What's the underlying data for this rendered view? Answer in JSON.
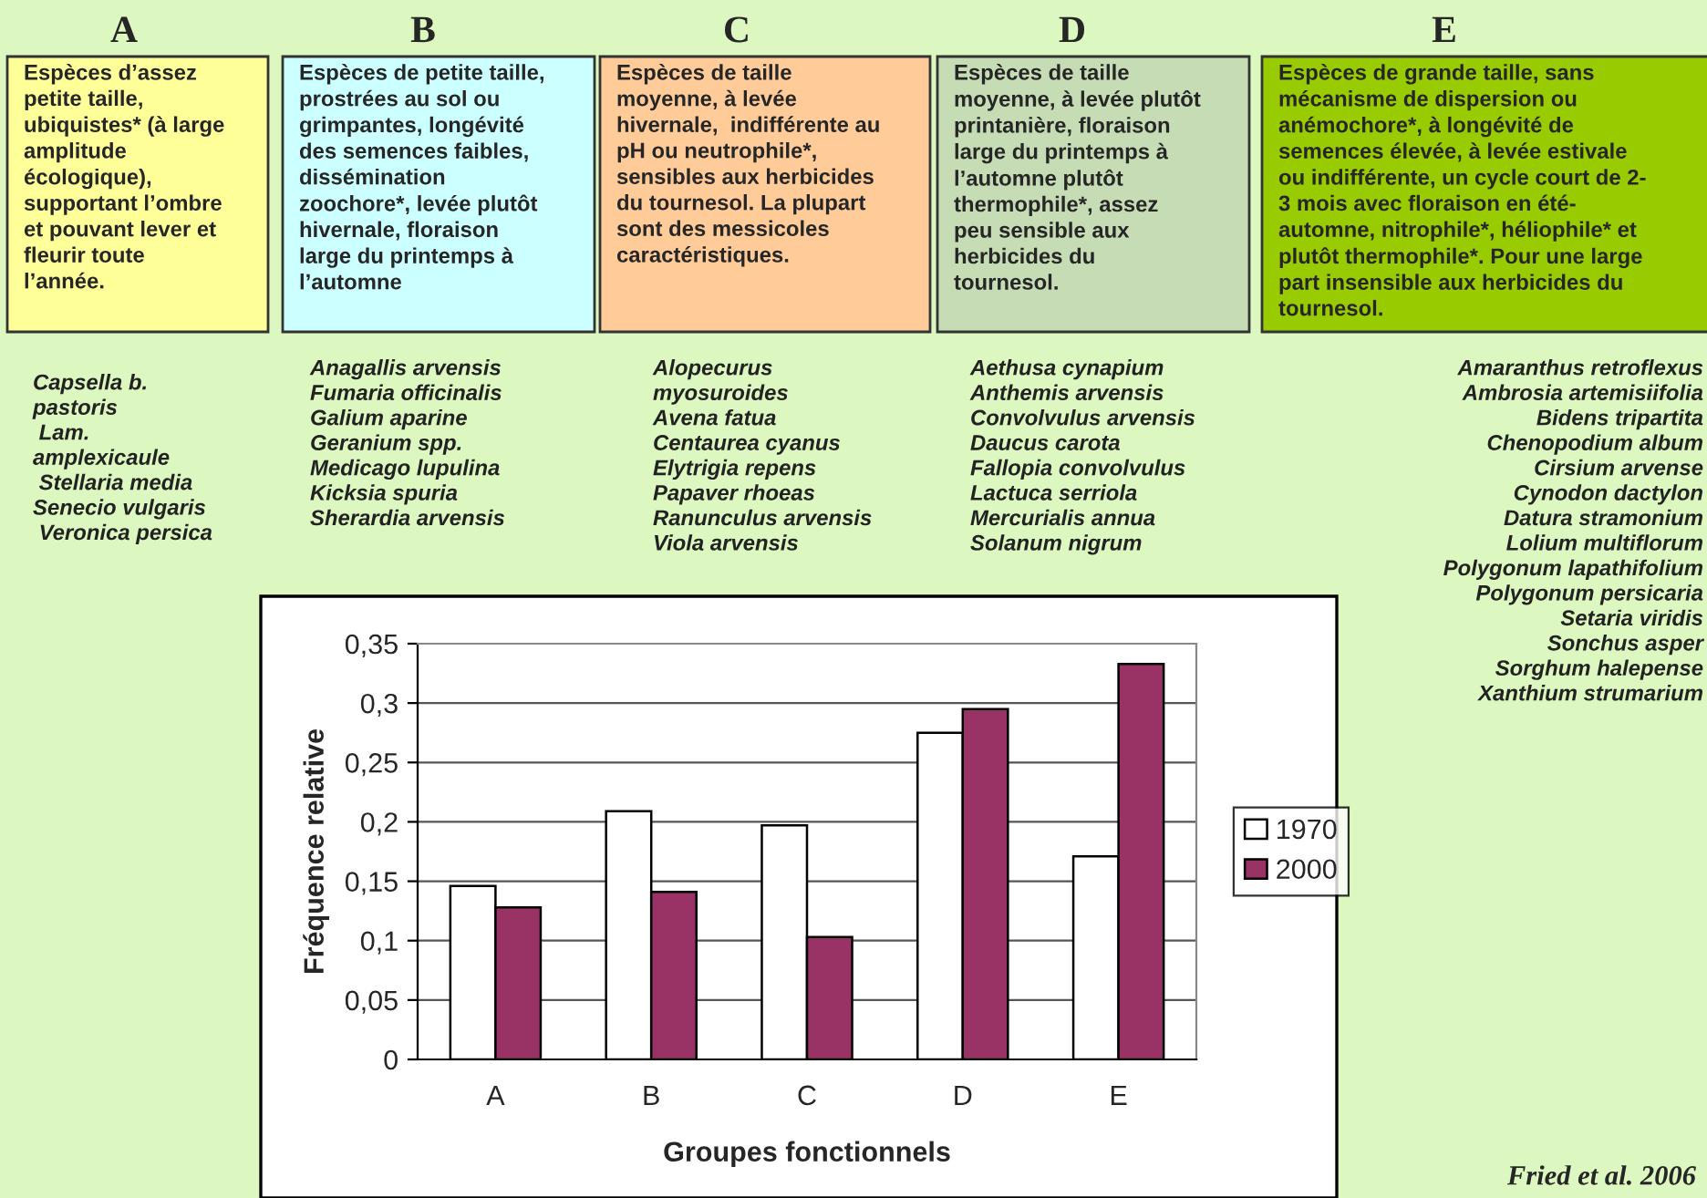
{
  "chart_data": {
    "type": "bar",
    "xlabel": "Groupes fonctionnels",
    "ylabel": "Fréquence relative",
    "categories": [
      "A",
      "B",
      "C",
      "D",
      "E"
    ],
    "series": [
      {
        "name": "1970",
        "color": "#ffffff",
        "values": [
          0.146,
          0.209,
          0.197,
          0.275,
          0.171
        ]
      },
      {
        "name": "2000",
        "color": "#993366",
        "values": [
          0.128,
          0.141,
          0.103,
          0.295,
          0.333
        ]
      }
    ],
    "ylim": [
      0,
      0.35
    ],
    "yticks": [
      0,
      {
        "value": 0.05,
        "label": "0,05"
      },
      {
        "value": 0.1,
        "label": "0,1"
      },
      {
        "value": 0.15,
        "label": "0,15"
      },
      {
        "value": 0.2,
        "label": "0,2"
      },
      {
        "value": 0.25,
        "label": "0,25"
      },
      {
        "value": 0.3,
        "label": "0,3"
      },
      {
        "value": 0.35,
        "label": "0,35"
      }
    ],
    "grid": "y",
    "legend": "right",
    "annotations": [
      "A",
      "B",
      "C",
      "D",
      "E",
      "Espèces d’assez\npetite taille,\nubiquistes* (à large\namplitude\nécologique),\nsupportant l’ombre\net pouvant lever et\nfleurir toute\nl’année.",
      "Espèces de petite taille,\nprostrées au sol ou\ngrimpantes, longévité\ndes semences faibles,\ndissémination\nzoochore*, levée plutôt\nhivernale, floraison\nlarge du printemps à\nl’automne",
      "Espèces de taille\nmoyenne, à levée\nhivernale,  indifférente au\npH ou neutrophile*,\nsensibles aux herbicides\ndu tournesol. La plupart\nsont des messicoles\ncaractéristiques.",
      "Espèces de taille\nmoyenne, à levée plutôt\nprintanière, floraison\nlarge du printemps à\nl’automne plutôt\nthermophile*, assez\npeu sensible aux\nherbicides du\ntournesol.",
      "Espèces de grande taille, sans\nmécanisme de dispersion ou\nanémochore*, à longévité de\nsemences élevée, à levée estivale\nou indifférente, un cycle court de 2-\n3 mois avec floraison en été-\nautomne, nitrophile*, héliophile* et\nplutôt thermophile*. Pour une large\npart insensible aux herbicides du\ntournesol.",
      "Capsella b.\npastoris\n Lam.\namplexicaule\n Stellaria media\nSenecio vulgaris\n Veronica persica",
      "Anagallis arvensis\nFumaria officinalis\nGalium aparine\nGeranium spp.\nMedicago lupulina\nKicksia spuria\nSherardia arvensis",
      "Alopecurus\nmyosuroides\nAvena fatua\nCentaurea cyanus\nElytrigia repens\nPapaver rhoeas\nRanunculus arvensis\nViola arvensis",
      "Aethusa cynapium\nAnthemis arvensis\nConvolvulus arvensis\nDaucus carota\nFallopia convolvulus\nLactuca serriola\nMercurialis annua\nSolanum nigrum",
      "Amaranthus retroflexus\nAmbrosia artemisiifolia\nBidens tripartita\nChenopodium album\nCirsium arvense\nCynodon dactylon\nDatura stramonium\nLolium multiflorum\nPolygonum lapathifolium\nPolygonum persicaria\nSetaria viridis\nSonchus asper\nSorghum halepense\nXanthium strumarium",
      "Fried et al. 2006"
    ]
  }
}
